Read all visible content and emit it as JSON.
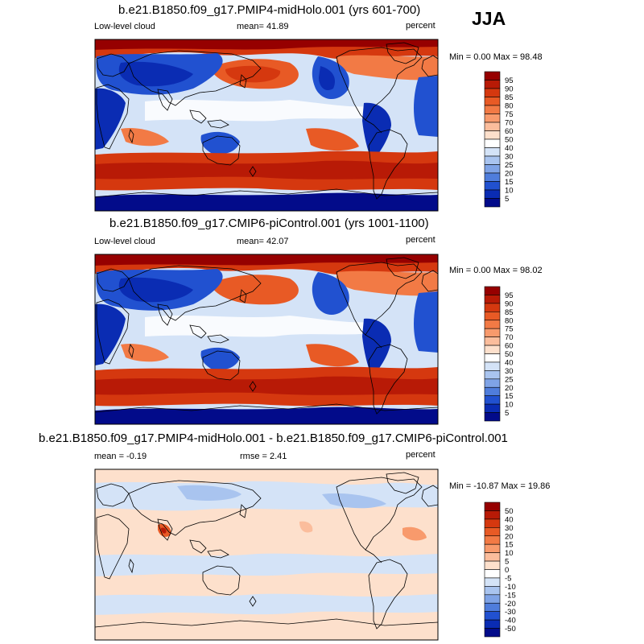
{
  "season": "JJA",
  "panels": [
    {
      "title": "b.e21.B1850.f09_g17.PMIP4-midHolo.001 (yrs 601-700)",
      "left_label": "Low-level cloud",
      "center_label": "mean=  41.89",
      "right_label": "percent",
      "minmax": "Min =  0.00 Max =  98.48",
      "colorbar": {
        "labels": [
          "95",
          "90",
          "85",
          "80",
          "75",
          "70",
          "60",
          "50",
          "40",
          "30",
          "25",
          "20",
          "15",
          "10",
          "5"
        ],
        "colors": [
          "#960000",
          "#b81a06",
          "#d5380f",
          "#e85a25",
          "#f27a45",
          "#f89a6c",
          "#fbbd9c",
          "#fde0cc",
          "#ffffff",
          "#d4e3f7",
          "#a9c4ef",
          "#7fa3e6",
          "#4f7ddc",
          "#2151d0",
          "#0a2cb3",
          "#020b8a"
        ]
      }
    },
    {
      "title": "b.e21.B1850.f09_g17.CMIP6-piControl.001 (yrs 1001-1100)",
      "left_label": "Low-level cloud",
      "center_label": "mean=  42.07",
      "right_label": "percent",
      "minmax": "Min =  0.00 Max =  98.02",
      "colorbar": {
        "labels": [
          "95",
          "90",
          "85",
          "80",
          "75",
          "70",
          "60",
          "50",
          "40",
          "30",
          "25",
          "20",
          "15",
          "10",
          "5"
        ],
        "colors": [
          "#960000",
          "#b81a06",
          "#d5380f",
          "#e85a25",
          "#f27a45",
          "#f89a6c",
          "#fbbd9c",
          "#fde0cc",
          "#ffffff",
          "#d4e3f7",
          "#a9c4ef",
          "#7fa3e6",
          "#4f7ddc",
          "#2151d0",
          "#0a2cb3",
          "#020b8a"
        ]
      }
    },
    {
      "title": "b.e21.B1850.f09_g17.PMIP4-midHolo.001 - b.e21.B1850.f09_g17.CMIP6-piControl.001",
      "left_label": "mean =  -0.19",
      "center_label": "rmse =   2.41",
      "right_label": "percent",
      "minmax": "Min = -10.87 Max =  19.86",
      "colorbar": {
        "labels": [
          "50",
          "40",
          "30",
          "20",
          "15",
          "10",
          "5",
          "0",
          "-5",
          "-10",
          "-15",
          "-20",
          "-30",
          "-40",
          "-50"
        ],
        "colors": [
          "#960000",
          "#b81a06",
          "#d5380f",
          "#e85a25",
          "#f27a45",
          "#f89a6c",
          "#fbbd9c",
          "#fde0cc",
          "#ffffff",
          "#d4e3f7",
          "#a9c4ef",
          "#7fa3e6",
          "#4f7ddc",
          "#2151d0",
          "#0a2cb3",
          "#020b8a"
        ]
      }
    }
  ]
}
